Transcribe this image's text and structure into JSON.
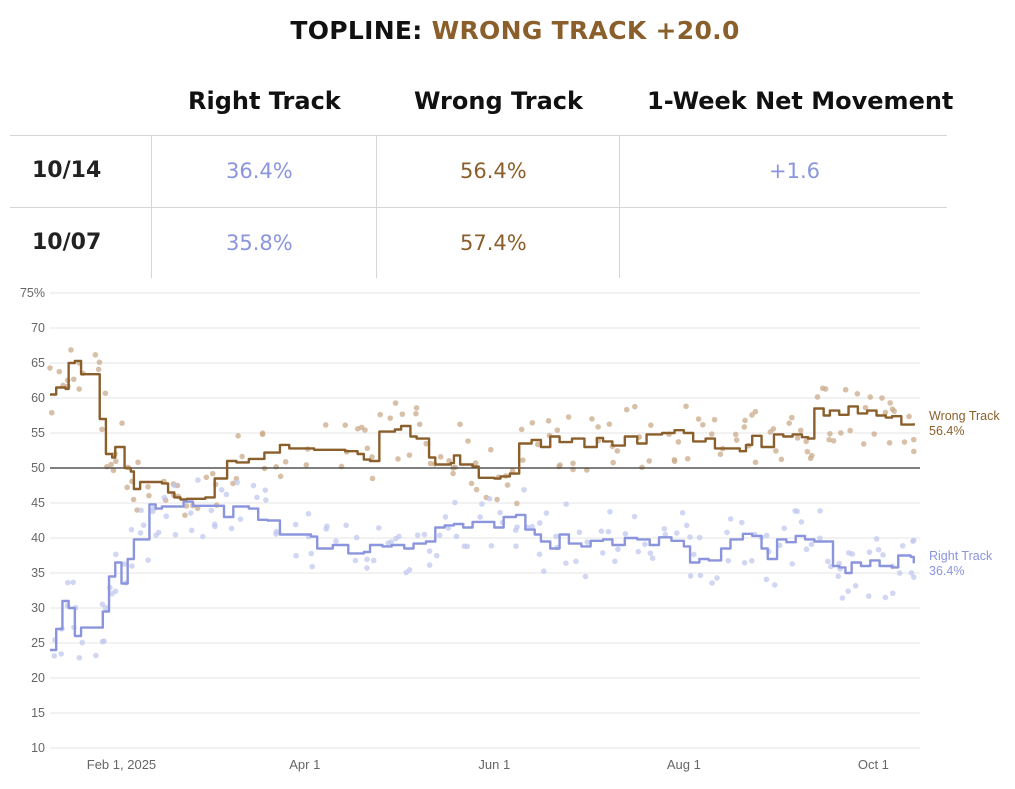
{
  "header": {
    "label": "TOPLINE:",
    "value": "WRONG TRACK +20.0"
  },
  "table": {
    "columns": [
      "Right Track",
      "Wrong Track",
      "1-Week Net Movement"
    ],
    "rows": [
      {
        "date": "10/14",
        "right": "36.4%",
        "wrong": "56.4%",
        "net": "+1.6"
      },
      {
        "date": "10/07",
        "right": "35.8%",
        "wrong": "57.4%",
        "net": ""
      }
    ]
  },
  "colors": {
    "wrong_track": "#8a5f2b",
    "right_track": "#8b95dd",
    "wrong_dots": "#c9ab8a",
    "right_dots": "#c2c8ef",
    "reference_line": "#333333",
    "grid": "#e6e6e6"
  },
  "chart_data": {
    "type": "line",
    "x_ticks": [
      "Feb 1, 2025",
      "Apr 1",
      "Jun 1",
      "Aug 1",
      "Oct 1"
    ],
    "y_ticks": [
      "75%",
      "70",
      "65",
      "60",
      "55",
      "50",
      "45",
      "40",
      "35",
      "30",
      "25",
      "20",
      "15",
      "10"
    ],
    "ylim": [
      10,
      75
    ],
    "xlim": [
      "2025-01-09",
      "2025-10-16"
    ],
    "reference_line": 50,
    "grid": true,
    "series": [
      {
        "name": "Wrong Track",
        "end_label": "Wrong Track",
        "end_value": "56.4%",
        "points": [
          [
            "2025-01-09",
            60.5
          ],
          [
            "2025-01-11",
            61.5
          ],
          [
            "2025-01-14",
            61.3
          ],
          [
            "2025-01-15",
            65.0
          ],
          [
            "2025-01-17",
            65.3
          ],
          [
            "2025-01-19",
            63.4
          ],
          [
            "2025-01-24",
            63.4
          ],
          [
            "2025-01-25",
            57.0
          ],
          [
            "2025-01-27",
            52.0
          ],
          [
            "2025-01-29",
            51.5
          ],
          [
            "2025-01-30",
            53.0
          ],
          [
            "2025-02-02",
            50.0
          ],
          [
            "2025-02-04",
            49.5
          ],
          [
            "2025-02-05",
            47.0
          ],
          [
            "2025-02-07",
            48.0
          ],
          [
            "2025-02-14",
            47.8
          ],
          [
            "2025-02-16",
            46.5
          ],
          [
            "2025-02-18",
            45.8
          ],
          [
            "2025-02-20",
            45.5
          ],
          [
            "2025-02-22",
            45.6
          ],
          [
            "2025-02-28",
            45.8
          ],
          [
            "2025-03-03",
            48.5
          ],
          [
            "2025-03-07",
            51.0
          ],
          [
            "2025-03-10",
            50.8
          ],
          [
            "2025-03-14",
            51.3
          ],
          [
            "2025-03-19",
            52.2
          ],
          [
            "2025-03-24",
            53.3
          ],
          [
            "2025-03-27",
            52.8
          ],
          [
            "2025-04-04",
            52.6
          ],
          [
            "2025-04-14",
            52.4
          ],
          [
            "2025-04-18",
            52.0
          ],
          [
            "2025-04-20",
            51.2
          ],
          [
            "2025-04-22",
            51.0
          ],
          [
            "2025-04-25",
            55.2
          ],
          [
            "2025-04-30",
            55.5
          ],
          [
            "2025-05-02",
            56.0
          ],
          [
            "2025-05-05",
            54.5
          ],
          [
            "2025-05-07",
            54.2
          ],
          [
            "2025-05-11",
            51.5
          ],
          [
            "2025-05-13",
            50.5
          ],
          [
            "2025-05-18",
            50.7
          ],
          [
            "2025-05-19",
            51.8
          ],
          [
            "2025-05-21",
            50.5
          ],
          [
            "2025-05-25",
            50.2
          ],
          [
            "2025-05-27",
            48.6
          ],
          [
            "2025-06-01",
            48.5
          ],
          [
            "2025-06-03",
            48.8
          ],
          [
            "2025-06-06",
            49.2
          ],
          [
            "2025-06-09",
            53.5
          ],
          [
            "2025-06-13",
            54.0
          ],
          [
            "2025-06-16",
            53.0
          ],
          [
            "2025-06-19",
            54.5
          ],
          [
            "2025-06-22",
            53.7
          ],
          [
            "2025-06-26",
            54.2
          ],
          [
            "2025-06-30",
            53.0
          ],
          [
            "2025-07-04",
            54.3
          ],
          [
            "2025-07-06",
            53.8
          ],
          [
            "2025-07-09",
            53.2
          ],
          [
            "2025-07-13",
            54.5
          ],
          [
            "2025-07-17",
            53.5
          ],
          [
            "2025-07-20",
            54.8
          ],
          [
            "2025-07-25",
            55.0
          ],
          [
            "2025-07-29",
            55.4
          ],
          [
            "2025-08-01",
            55.0
          ],
          [
            "2025-08-04",
            53.8
          ],
          [
            "2025-08-08",
            54.2
          ],
          [
            "2025-08-11",
            52.8
          ],
          [
            "2025-08-16",
            52.8
          ],
          [
            "2025-08-19",
            52.4
          ],
          [
            "2025-08-21",
            53.3
          ],
          [
            "2025-08-23",
            54.6
          ],
          [
            "2025-08-26",
            53.0
          ],
          [
            "2025-08-30",
            54.8
          ],
          [
            "2025-09-02",
            54.5
          ],
          [
            "2025-09-05",
            54.8
          ],
          [
            "2025-09-08",
            54.4
          ],
          [
            "2025-09-10",
            54.2
          ],
          [
            "2025-09-12",
            58.5
          ],
          [
            "2025-09-15",
            57.5
          ],
          [
            "2025-09-17",
            58.2
          ],
          [
            "2025-09-20",
            57.6
          ],
          [
            "2025-09-23",
            58.8
          ],
          [
            "2025-09-26",
            57.8
          ],
          [
            "2025-09-29",
            58.2
          ],
          [
            "2025-10-02",
            57.5
          ],
          [
            "2025-10-05",
            57.2
          ],
          [
            "2025-10-07",
            57.4
          ],
          [
            "2025-10-10",
            56.2
          ],
          [
            "2025-10-14",
            56.4
          ]
        ]
      },
      {
        "name": "Right Track",
        "end_label": "Right Track",
        "end_value": "36.4%",
        "points": [
          [
            "2025-01-09",
            24.0
          ],
          [
            "2025-01-11",
            27.0
          ],
          [
            "2025-01-13",
            31.0
          ],
          [
            "2025-01-15",
            30.0
          ],
          [
            "2025-01-17",
            26.0
          ],
          [
            "2025-01-19",
            27.2
          ],
          [
            "2025-01-24",
            27.2
          ],
          [
            "2025-01-26",
            29.5
          ],
          [
            "2025-01-28",
            34.5
          ],
          [
            "2025-01-30",
            36.5
          ],
          [
            "2025-02-01",
            33.5
          ],
          [
            "2025-02-03",
            37.0
          ],
          [
            "2025-02-05",
            39.8
          ],
          [
            "2025-02-08",
            39.8
          ],
          [
            "2025-02-10",
            44.8
          ],
          [
            "2025-02-12",
            44.2
          ],
          [
            "2025-02-14",
            44.5
          ],
          [
            "2025-02-18",
            44.5
          ],
          [
            "2025-02-21",
            45.2
          ],
          [
            "2025-02-24",
            44.6
          ],
          [
            "2025-02-28",
            44.6
          ],
          [
            "2025-03-03",
            44.6
          ],
          [
            "2025-03-06",
            43.0
          ],
          [
            "2025-03-09",
            44.5
          ],
          [
            "2025-03-14",
            44.2
          ],
          [
            "2025-03-17",
            42.6
          ],
          [
            "2025-03-20",
            42.5
          ],
          [
            "2025-03-24",
            40.5
          ],
          [
            "2025-03-30",
            40.5
          ],
          [
            "2025-04-03",
            40.2
          ],
          [
            "2025-04-05",
            38.5
          ],
          [
            "2025-04-10",
            39.0
          ],
          [
            "2025-04-15",
            37.8
          ],
          [
            "2025-04-20",
            38.0
          ],
          [
            "2025-04-22",
            39.0
          ],
          [
            "2025-04-26",
            38.8
          ],
          [
            "2025-04-29",
            39.0
          ],
          [
            "2025-05-03",
            38.5
          ],
          [
            "2025-05-06",
            39.2
          ],
          [
            "2025-05-10",
            39.5
          ],
          [
            "2025-05-13",
            41.5
          ],
          [
            "2025-05-16",
            41.8
          ],
          [
            "2025-05-19",
            42.0
          ],
          [
            "2025-05-22",
            41.5
          ],
          [
            "2025-05-25",
            42.3
          ],
          [
            "2025-05-29",
            42.3
          ],
          [
            "2025-06-01",
            41.5
          ],
          [
            "2025-06-04",
            43.0
          ],
          [
            "2025-06-08",
            43.3
          ],
          [
            "2025-06-11",
            41.2
          ],
          [
            "2025-06-14",
            40.5
          ],
          [
            "2025-06-16",
            39.5
          ],
          [
            "2025-06-19",
            38.5
          ],
          [
            "2025-06-22",
            40.5
          ],
          [
            "2025-06-25",
            39.2
          ],
          [
            "2025-06-29",
            38.8
          ],
          [
            "2025-07-02",
            39.6
          ],
          [
            "2025-07-06",
            39.8
          ],
          [
            "2025-07-09",
            39.0
          ],
          [
            "2025-07-13",
            40.0
          ],
          [
            "2025-07-17",
            39.8
          ],
          [
            "2025-07-21",
            39.0
          ],
          [
            "2025-07-24",
            40.1
          ],
          [
            "2025-07-28",
            39.6
          ],
          [
            "2025-08-01",
            38.8
          ],
          [
            "2025-08-03",
            36.5
          ],
          [
            "2025-08-06",
            37.0
          ],
          [
            "2025-08-09",
            36.8
          ],
          [
            "2025-08-13",
            38.5
          ],
          [
            "2025-08-16",
            39.8
          ],
          [
            "2025-08-20",
            40.6
          ],
          [
            "2025-08-23",
            40.3
          ],
          [
            "2025-08-26",
            38.5
          ],
          [
            "2025-08-28",
            37.0
          ],
          [
            "2025-08-31",
            39.8
          ],
          [
            "2025-09-03",
            39.4
          ],
          [
            "2025-09-06",
            40.3
          ],
          [
            "2025-09-09",
            39.8
          ],
          [
            "2025-09-12",
            39.5
          ],
          [
            "2025-09-16",
            39.5
          ],
          [
            "2025-09-18",
            36.0
          ],
          [
            "2025-09-20",
            35.8
          ],
          [
            "2025-09-22",
            35.0
          ],
          [
            "2025-09-24",
            36.5
          ],
          [
            "2025-09-27",
            36.0
          ],
          [
            "2025-09-30",
            36.8
          ],
          [
            "2025-10-03",
            36.0
          ],
          [
            "2025-10-07",
            35.8
          ],
          [
            "2025-10-09",
            37.5
          ],
          [
            "2025-10-13",
            37.3
          ],
          [
            "2025-10-14",
            36.4
          ]
        ]
      }
    ]
  }
}
